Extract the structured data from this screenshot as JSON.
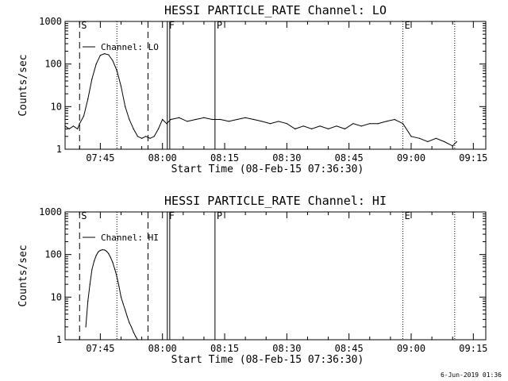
{
  "footer": {
    "timestamp": "6-Jun-2019 01:36"
  },
  "chart_data": [
    {
      "type": "line",
      "title": "HESSI PARTICLE_RATE Channel: LO",
      "xlabel": "Start Time (08-Feb-15 07:36:30)",
      "ylabel": "Counts/sec",
      "y_scale": "log",
      "ylim": [
        1,
        1000
      ],
      "xlim": [
        "07:36:30",
        "09:18:00"
      ],
      "grid": false,
      "legend": {
        "position": "top-left",
        "entries": [
          "Channel: LO"
        ]
      },
      "x_ticks": [
        "07:45",
        "08:00",
        "08:15",
        "08:30",
        "08:45",
        "09:00",
        "09:15"
      ],
      "y_ticks": [
        "1",
        "10",
        "100",
        "1000"
      ],
      "vertical_markers": [
        {
          "label": "S",
          "time": "07:40:00",
          "style": "dashed"
        },
        {
          "label": "",
          "time": "07:49:00",
          "style": "dotted"
        },
        {
          "label": "",
          "time": "07:56:30",
          "style": "dashed"
        },
        {
          "label": "F",
          "time": "08:01:10",
          "style": "solid"
        },
        {
          "label": "",
          "time": "08:01:45",
          "style": "solid"
        },
        {
          "label": "P",
          "time": "08:12:40",
          "style": "solid"
        },
        {
          "label": "E",
          "time": "08:58:00",
          "style": "dotted"
        },
        {
          "label": "",
          "time": "09:10:30",
          "style": "dotted"
        }
      ],
      "series": [
        {
          "name": "Channel: LO",
          "x": [
            "07:36:30",
            "07:37:30",
            "07:38:30",
            "07:39:30",
            "07:40:00",
            "07:41:00",
            "07:42:00",
            "07:43:00",
            "07:44:00",
            "07:45:00",
            "07:46:00",
            "07:47:00",
            "07:48:00",
            "07:49:00",
            "07:50:00",
            "07:51:00",
            "07:52:00",
            "07:53:00",
            "07:54:00",
            "07:55:00",
            "07:56:00",
            "07:57:00",
            "07:58:00",
            "07:59:00",
            "08:00:00",
            "08:01:00",
            "08:02:00",
            "08:04:00",
            "08:06:00",
            "08:08:00",
            "08:10:00",
            "08:12:00",
            "08:14:00",
            "08:16:00",
            "08:18:00",
            "08:20:00",
            "08:22:00",
            "08:24:00",
            "08:26:00",
            "08:28:00",
            "08:30:00",
            "08:32:00",
            "08:34:00",
            "08:36:00",
            "08:38:00",
            "08:40:00",
            "08:42:00",
            "08:44:00",
            "08:46:00",
            "08:48:00",
            "08:50:00",
            "08:52:00",
            "08:54:00",
            "08:56:00",
            "08:58:00",
            "09:00:00",
            "09:02:00",
            "09:04:00",
            "09:06:00",
            "09:08:00",
            "09:10:00",
            "09:11:00"
          ],
          "y": [
            3.5,
            3,
            3.5,
            3,
            4,
            6,
            15,
            45,
            100,
            160,
            175,
            165,
            120,
            70,
            30,
            10,
            5,
            3,
            2,
            1.8,
            2,
            1.8,
            2,
            3,
            5,
            4,
            5,
            5.5,
            4.5,
            5,
            5.5,
            5,
            5,
            4.5,
            5,
            5.5,
            5,
            4.5,
            4,
            4.5,
            4,
            3,
            3.5,
            3,
            3.5,
            3,
            3.5,
            3,
            4,
            3.5,
            4,
            4,
            4.5,
            5,
            4,
            2,
            1.8,
            1.5,
            1.8,
            1.5,
            1.2,
            1.5
          ]
        }
      ]
    },
    {
      "type": "line",
      "title": "HESSI PARTICLE_RATE Channel: HI",
      "xlabel": "Start Time (08-Feb-15 07:36:30)",
      "ylabel": "Counts/sec",
      "y_scale": "log",
      "ylim": [
        1,
        1000
      ],
      "xlim": [
        "07:36:30",
        "09:18:00"
      ],
      "grid": false,
      "legend": {
        "position": "top-left",
        "entries": [
          "Channel: HI"
        ]
      },
      "x_ticks": [
        "07:45",
        "08:00",
        "08:15",
        "08:30",
        "08:45",
        "09:00",
        "09:15"
      ],
      "y_ticks": [
        "1",
        "10",
        "100",
        "1000"
      ],
      "vertical_markers": [
        {
          "label": "S",
          "time": "07:40:00",
          "style": "dashed"
        },
        {
          "label": "",
          "time": "07:49:00",
          "style": "dotted"
        },
        {
          "label": "",
          "time": "07:56:30",
          "style": "dashed"
        },
        {
          "label": "F",
          "time": "08:01:10",
          "style": "solid"
        },
        {
          "label": "",
          "time": "08:01:45",
          "style": "solid"
        },
        {
          "label": "P",
          "time": "08:12:40",
          "style": "solid"
        },
        {
          "label": "E",
          "time": "08:58:00",
          "style": "dotted"
        },
        {
          "label": "",
          "time": "09:10:30",
          "style": "dotted"
        }
      ],
      "series": [
        {
          "name": "Channel: HI",
          "x": [
            "07:41:30",
            "07:42:00",
            "07:42:30",
            "07:43:00",
            "07:43:30",
            "07:44:00",
            "07:44:30",
            "07:45:00",
            "07:45:30",
            "07:46:00",
            "07:46:30",
            "07:47:00",
            "07:47:30",
            "07:48:00",
            "07:48:30",
            "07:49:00",
            "07:49:30",
            "07:50:00",
            "07:50:30",
            "07:51:00",
            "07:51:30",
            "07:52:00",
            "07:52:30",
            "07:53:00",
            "07:53:30",
            "07:54:00"
          ],
          "y": [
            2,
            8,
            20,
            45,
            70,
            95,
            115,
            125,
            130,
            128,
            120,
            105,
            85,
            65,
            45,
            30,
            18,
            10,
            7,
            5,
            3.5,
            2.5,
            2,
            1.5,
            1.2,
            1
          ]
        }
      ]
    }
  ]
}
